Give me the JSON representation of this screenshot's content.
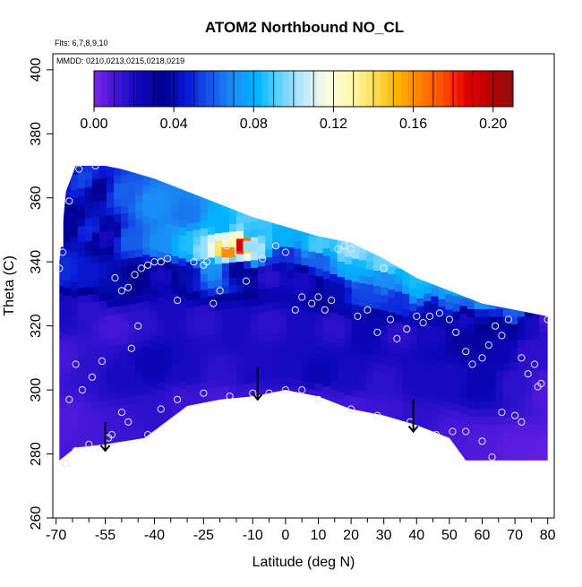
{
  "chart_data": {
    "type": "heatmap",
    "title": "ATOM2 Northbound NO_CL",
    "annotations": {
      "flights": "Flts: 6,7,8,9,10",
      "dates": "MMDD: 0210,0213,0215,0218,0219"
    },
    "xlabel": "Latitude (deg N)",
    "ylabel": "Theta (C)",
    "xlim": [
      -71,
      82
    ],
    "ylim": [
      260,
      405
    ],
    "x_ticks": [
      -70,
      -55,
      -40,
      -25,
      -10,
      0,
      10,
      20,
      30,
      40,
      50,
      60,
      70,
      80
    ],
    "x_minor_ticks": [
      -65,
      -60,
      -50,
      -45,
      -35,
      -30,
      -20,
      -15,
      -5,
      5,
      15,
      25,
      35,
      45,
      55,
      65,
      75
    ],
    "y_ticks": [
      260,
      280,
      300,
      320,
      340,
      360,
      380,
      400
    ],
    "colorbar": {
      "min": 0.0,
      "max": 0.21,
      "tick_values": [
        0.0,
        0.04,
        0.08,
        0.12,
        0.16,
        0.2
      ],
      "tick_labels": [
        "0.00",
        "0.04",
        "0.08",
        "0.12",
        "0.16",
        "0.20"
      ],
      "colors": [
        "#7a25e6",
        "#3b14d6",
        "#0a06b8",
        "#00008e",
        "#0a1ad8",
        "#1657e8",
        "#1a8ef5",
        "#00b4ff",
        "#66d2ff",
        "#bfeaff",
        "#fbfde0",
        "#fffab0",
        "#ffe15a",
        "#ffb400",
        "#ff8000",
        "#ff4d00",
        "#e00000",
        "#b80000",
        "#8e1010"
      ]
    },
    "envelope": {
      "top": [
        [
          -69,
          340
        ],
        [
          -67,
          362
        ],
        [
          -64,
          370
        ],
        [
          -55,
          370
        ],
        [
          -50,
          369
        ],
        [
          -40,
          366
        ],
        [
          -30,
          362
        ],
        [
          -20,
          358
        ],
        [
          -10,
          354
        ],
        [
          0,
          351
        ],
        [
          10,
          348
        ],
        [
          20,
          346
        ],
        [
          30,
          341
        ],
        [
          40,
          335
        ],
        [
          50,
          331
        ],
        [
          60,
          327
        ],
        [
          70,
          325
        ],
        [
          80,
          323
        ]
      ],
      "bottom": [
        [
          -69,
          278
        ],
        [
          -64,
          282
        ],
        [
          -55,
          283
        ],
        [
          -43,
          285
        ],
        [
          -30,
          295
        ],
        [
          -20,
          297
        ],
        [
          -10,
          298
        ],
        [
          0,
          300
        ],
        [
          10,
          298
        ],
        [
          20,
          294
        ],
        [
          30,
          292
        ],
        [
          40,
          289
        ],
        [
          50,
          285
        ],
        [
          55,
          278
        ],
        [
          80,
          278
        ]
      ]
    },
    "field_points": [
      [
        -67,
        368,
        0.04
      ],
      [
        -62,
        366,
        0.055
      ],
      [
        -57,
        363,
        0.035
      ],
      [
        -50,
        362,
        0.06
      ],
      [
        -40,
        358,
        0.07
      ],
      [
        -30,
        355,
        0.065
      ],
      [
        -20,
        352,
        0.08
      ],
      [
        -10,
        349,
        0.085
      ],
      [
        0,
        347,
        0.08
      ],
      [
        10,
        345,
        0.09
      ],
      [
        20,
        343,
        0.1
      ],
      [
        30,
        339,
        0.095
      ],
      [
        40,
        334,
        0.085
      ],
      [
        50,
        330,
        0.08
      ],
      [
        60,
        326,
        0.07
      ],
      [
        70,
        324,
        0.06
      ],
      [
        -66,
        352,
        0.03
      ],
      [
        -60,
        350,
        0.05
      ],
      [
        -55,
        348,
        0.02
      ],
      [
        -48,
        347,
        0.06
      ],
      [
        -38,
        346,
        0.07
      ],
      [
        -30,
        345,
        0.085
      ],
      [
        -25,
        344,
        0.1
      ],
      [
        -20,
        344,
        0.14
      ],
      [
        -17,
        344,
        0.11
      ],
      [
        -13,
        345,
        0.19
      ],
      [
        -10,
        344,
        0.1
      ],
      [
        0,
        343,
        0.05
      ],
      [
        10,
        341,
        0.06
      ],
      [
        20,
        338,
        0.08
      ],
      [
        30,
        335,
        0.07
      ],
      [
        40,
        331,
        0.08
      ],
      [
        50,
        328,
        0.06
      ],
      [
        60,
        323,
        0.04
      ],
      [
        -68,
        338,
        0.05
      ],
      [
        -60,
        336,
        0.045
      ],
      [
        -52,
        333,
        0.04
      ],
      [
        -45,
        336,
        0.035
      ],
      [
        -38,
        336,
        0.02
      ],
      [
        -30,
        337,
        0.04
      ],
      [
        -22,
        338,
        0.07
      ],
      [
        -15,
        338,
        0.03
      ],
      [
        -5,
        336,
        0.015
      ],
      [
        5,
        334,
        0.02
      ],
      [
        15,
        332,
        0.04
      ],
      [
        25,
        330,
        0.055
      ],
      [
        35,
        328,
        0.05
      ],
      [
        45,
        326,
        0.04
      ],
      [
        55,
        322,
        0.02
      ],
      [
        65,
        320,
        0.03
      ],
      [
        75,
        321,
        0.02
      ],
      [
        80,
        322,
        0.01
      ],
      [
        -68,
        325,
        0.02
      ],
      [
        -60,
        325,
        0.015
      ],
      [
        -52,
        320,
        0.01
      ],
      [
        -44,
        322,
        0.015
      ],
      [
        -35,
        325,
        0.02
      ],
      [
        -25,
        322,
        0.015
      ],
      [
        -15,
        322,
        0.02
      ],
      [
        -5,
        321,
        0.015
      ],
      [
        5,
        320,
        0.02
      ],
      [
        15,
        320,
        0.015
      ],
      [
        25,
        320,
        0.025
      ],
      [
        35,
        318,
        0.015
      ],
      [
        45,
        318,
        0.02
      ],
      [
        55,
        316,
        0.03
      ],
      [
        65,
        312,
        0.025
      ],
      [
        75,
        312,
        0.015
      ],
      [
        -68,
        310,
        0.01
      ],
      [
        -60,
        308,
        0.015
      ],
      [
        -50,
        305,
        0.02
      ],
      [
        -40,
        308,
        0.025
      ],
      [
        -30,
        306,
        0.02
      ],
      [
        -20,
        305,
        0.015
      ],
      [
        -10,
        304,
        0.02
      ],
      [
        0,
        305,
        0.02
      ],
      [
        10,
        304,
        0.025
      ],
      [
        20,
        303,
        0.02
      ],
      [
        30,
        302,
        0.015
      ],
      [
        40,
        303,
        0.02
      ],
      [
        50,
        304,
        0.02
      ],
      [
        60,
        302,
        0.025
      ],
      [
        70,
        302,
        0.015
      ],
      [
        80,
        300,
        0.008
      ],
      [
        -68,
        290,
        0.008
      ],
      [
        -60,
        287,
        0.01
      ],
      [
        -50,
        288,
        0.012
      ],
      [
        -40,
        292,
        0.015
      ],
      [
        -30,
        297,
        0.012
      ],
      [
        -20,
        298,
        0.01
      ],
      [
        -10,
        299,
        0.012
      ],
      [
        0,
        300,
        0.015
      ],
      [
        10,
        298,
        0.012
      ],
      [
        20,
        295,
        0.01
      ],
      [
        30,
        293,
        0.012
      ],
      [
        40,
        290,
        0.015
      ],
      [
        50,
        287,
        0.01
      ],
      [
        60,
        283,
        0.008
      ],
      [
        70,
        282,
        0.006
      ],
      [
        80,
        280,
        0.005
      ]
    ],
    "hot_cells": [
      {
        "lat": -17.5,
        "theta": 343,
        "value": 0.16
      },
      {
        "lat": -13,
        "theta": 345,
        "value": 0.19
      },
      {
        "lat": -11,
        "theta": 345,
        "value": 0.1
      }
    ],
    "obs_points": [
      [
        -68,
        343
      ],
      [
        -69,
        338
      ],
      [
        -66,
        359
      ],
      [
        -63,
        369
      ],
      [
        -58,
        370
      ],
      [
        -52,
        335
      ],
      [
        -50,
        331
      ],
      [
        -48,
        332
      ],
      [
        -46,
        336
      ],
      [
        -44,
        338
      ],
      [
        -42,
        339
      ],
      [
        -40,
        340
      ],
      [
        -38,
        340
      ],
      [
        -36,
        341
      ],
      [
        -33,
        328
      ],
      [
        -28,
        340
      ],
      [
        -25,
        339
      ],
      [
        -24,
        340
      ],
      [
        -22,
        327
      ],
      [
        -20,
        331
      ],
      [
        -18,
        345
      ],
      [
        -12,
        334
      ],
      [
        -7,
        341
      ],
      [
        -3,
        345
      ],
      [
        0,
        343
      ],
      [
        3,
        325
      ],
      [
        5,
        329
      ],
      [
        8,
        327
      ],
      [
        10,
        329
      ],
      [
        12,
        325
      ],
      [
        14,
        328
      ],
      [
        16,
        344
      ],
      [
        18,
        345
      ],
      [
        20,
        344
      ],
      [
        22,
        323
      ],
      [
        25,
        325
      ],
      [
        28,
        318
      ],
      [
        30,
        338
      ],
      [
        32,
        322
      ],
      [
        34,
        316
      ],
      [
        37,
        319
      ],
      [
        40,
        323
      ],
      [
        42,
        321
      ],
      [
        44,
        323
      ],
      [
        47,
        324
      ],
      [
        50,
        322
      ],
      [
        52,
        318
      ],
      [
        55,
        312
      ],
      [
        57,
        308
      ],
      [
        60,
        310
      ],
      [
        62,
        314
      ],
      [
        64,
        320
      ],
      [
        66,
        317
      ],
      [
        68,
        322
      ],
      [
        72,
        310
      ],
      [
        74,
        305
      ],
      [
        76,
        308
      ],
      [
        78,
        302
      ],
      [
        80,
        322
      ],
      [
        -66,
        297
      ],
      [
        -64,
        308
      ],
      [
        -62,
        300
      ],
      [
        -59,
        304
      ],
      [
        -56,
        309
      ],
      [
        -53,
        286
      ],
      [
        -50,
        293
      ],
      [
        -47,
        313
      ],
      [
        -45,
        320
      ],
      [
        -42,
        286
      ],
      [
        -38,
        294
      ],
      [
        -33,
        297
      ],
      [
        -25,
        299
      ],
      [
        -17,
        298
      ],
      [
        -10,
        299
      ],
      [
        -5,
        299
      ],
      [
        0,
        300
      ],
      [
        5,
        300
      ],
      [
        10,
        297
      ],
      [
        20,
        294
      ],
      [
        28,
        292
      ],
      [
        38,
        290
      ],
      [
        46,
        286
      ],
      [
        51,
        287
      ],
      [
        55,
        287
      ],
      [
        60,
        284
      ],
      [
        63,
        279
      ],
      [
        66,
        293
      ],
      [
        70,
        292
      ],
      [
        72,
        290
      ],
      [
        77,
        301
      ],
      [
        -64,
        281
      ],
      [
        -60,
        283
      ],
      [
        -54,
        285
      ],
      [
        -48,
        290
      ],
      [
        -67,
        277
      ]
    ],
    "arrows": [
      {
        "lat": -55,
        "theta_from": 290,
        "theta_to": 281
      },
      {
        "lat": -8.5,
        "theta_from": 307,
        "theta_to": 297
      },
      {
        "lat": 39,
        "theta_from": 297,
        "theta_to": 287
      }
    ]
  }
}
